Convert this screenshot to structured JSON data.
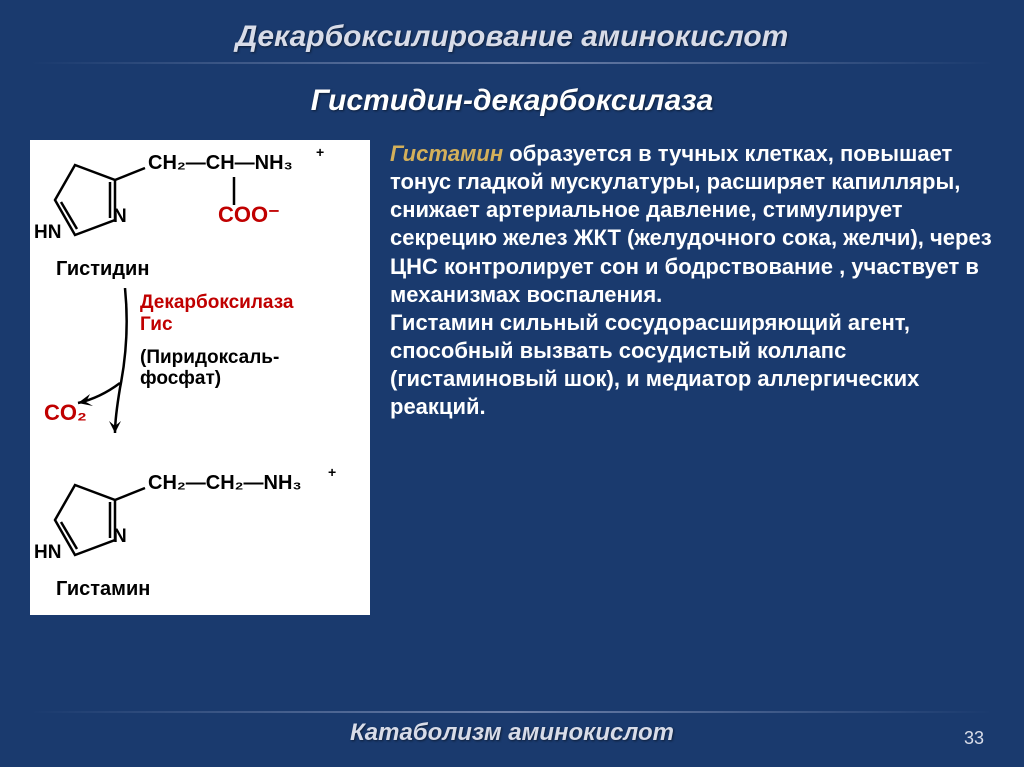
{
  "header": {
    "title": "Декарбоксилирование аминокислот",
    "subtitle": "Гистидин-декарбоксилаза"
  },
  "diagram": {
    "m1_chain": "CH₂—CH—NH₃",
    "m1_plus": "+",
    "m1_coo": "COO⁻",
    "m1_hn": "HN",
    "m1_n": "N",
    "m1_name": "Гистидин",
    "enzyme": "Декарбоксилаза Гис",
    "cofactor": "(Пиридоксаль-фосфат)",
    "co2": "CO₂",
    "m2_chain": "CH₂—CH₂—NH₃",
    "m2_plus": "+",
    "m2_hn": "HN",
    "m2_n": "N",
    "m2_name": "Гистамин"
  },
  "body": {
    "histamine_label": "Гистамин",
    "paragraph1": " образуется в тучных клетках, повышает тонус гладкой мускулатуры, расширяет капилляры, снижает артериальное давление, стимулирует секрецию желез ЖКТ (желудочного сока, желчи), через ЦНС контролирует сон и бодрствование , участвует в механизмах воспаления.",
    "paragraph2": "Гистамин сильный сосудорасширяющий агент, способный вызвать сосудистый коллапс (гистаминовый шок), и медиатор аллергических реакций."
  },
  "footer": {
    "title": "Катаболизм аминокислот",
    "page": "33"
  },
  "style": {
    "bg": "#1a3a6e",
    "diagram_bg": "#ffffff",
    "title_color": "#d8dce8",
    "body_color": "#ffffff",
    "highlight_color": "#d4b05a",
    "red": "#c00000",
    "black": "#000000"
  }
}
